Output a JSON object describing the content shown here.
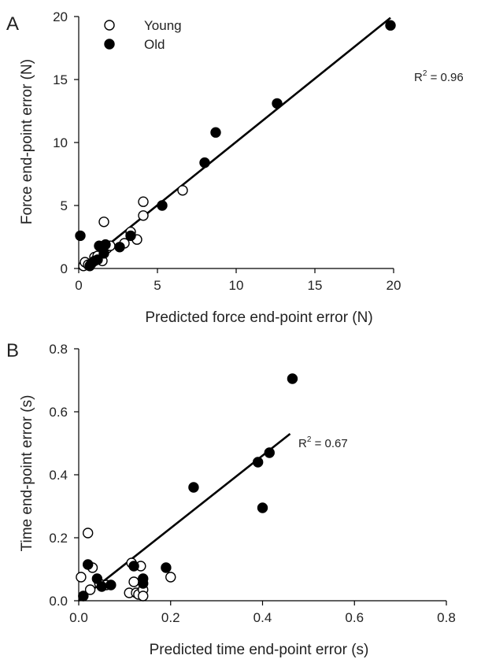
{
  "chart_data": [
    {
      "panel_label": "A",
      "type": "scatter",
      "xlabel": "Predicted force end-point error (N)",
      "ylabel": "Force end-point error (N)",
      "xlim": [
        0,
        20
      ],
      "ylim": [
        0,
        20
      ],
      "xticks": [
        "0",
        "5",
        "10",
        "15",
        "20"
      ],
      "yticks": [
        "0",
        "5",
        "10",
        "15",
        "20"
      ],
      "legend": {
        "position": "top-left",
        "entries": [
          {
            "label": "Young",
            "marker": "open-circle"
          },
          {
            "label": "Old",
            "marker": "filled-circle"
          }
        ]
      },
      "annotation": {
        "r2_prefix": "R",
        "r2_exp": "2",
        "r2_value": " = 0.96"
      },
      "fit_line": {
        "x": [
          0,
          19.8
        ],
        "y": [
          0,
          19.9
        ]
      },
      "series": [
        {
          "name": "Young",
          "marker": "open-circle",
          "points": [
            [
              0.3,
              0.2
            ],
            [
              0.4,
              0.5
            ],
            [
              0.6,
              0.3
            ],
            [
              0.8,
              0.4
            ],
            [
              1.0,
              0.9
            ],
            [
              1.2,
              1.0
            ],
            [
              1.5,
              0.6
            ],
            [
              1.6,
              3.7
            ],
            [
              1.8,
              1.6
            ],
            [
              2.0,
              1.8
            ],
            [
              2.9,
              2.0
            ],
            [
              3.3,
              2.9
            ],
            [
              3.7,
              2.3
            ],
            [
              4.1,
              5.3
            ],
            [
              4.1,
              4.2
            ],
            [
              6.6,
              6.2
            ]
          ]
        },
        {
          "name": "Old",
          "marker": "filled-circle",
          "points": [
            [
              0.1,
              2.6
            ],
            [
              0.7,
              0.2
            ],
            [
              0.8,
              0.4
            ],
            [
              1.0,
              0.6
            ],
            [
              1.2,
              0.7
            ],
            [
              1.3,
              1.8
            ],
            [
              1.6,
              1.2
            ],
            [
              1.7,
              1.9
            ],
            [
              2.6,
              1.7
            ],
            [
              3.3,
              2.6
            ],
            [
              5.3,
              5.0
            ],
            [
              8.0,
              8.4
            ],
            [
              8.7,
              10.8
            ],
            [
              12.6,
              13.1
            ],
            [
              19.8,
              19.3
            ]
          ]
        }
      ]
    },
    {
      "panel_label": "B",
      "type": "scatter",
      "xlabel": "Predicted time end-point error (s)",
      "ylabel": "Time end-point error (s)",
      "xlim": [
        0,
        0.8
      ],
      "ylim": [
        0,
        0.8
      ],
      "xticks": [
        "0.0",
        "0.2",
        "0.4",
        "0.6",
        "0.8"
      ],
      "yticks": [
        "0.0",
        "0.2",
        "0.4",
        "0.6",
        "0.8"
      ],
      "annotation": {
        "r2_prefix": "R",
        "r2_exp": "2",
        "r2_value": " = 0.67"
      },
      "fit_line": {
        "x": [
          0,
          0.46
        ],
        "y": [
          0,
          0.53
        ]
      },
      "series": [
        {
          "name": "Young",
          "marker": "open-circle",
          "points": [
            [
              0.005,
              0.075
            ],
            [
              0.02,
              0.215
            ],
            [
              0.025,
              0.035
            ],
            [
              0.03,
              0.105
            ],
            [
              0.045,
              0.055
            ],
            [
              0.06,
              0.05
            ],
            [
              0.11,
              0.025
            ],
            [
              0.115,
              0.12
            ],
            [
              0.12,
              0.06
            ],
            [
              0.125,
              0.025
            ],
            [
              0.13,
              0.02
            ],
            [
              0.135,
              0.11
            ],
            [
              0.14,
              0.035
            ],
            [
              0.14,
              0.015
            ],
            [
              0.2,
              0.075
            ]
          ]
        },
        {
          "name": "Old",
          "marker": "filled-circle",
          "points": [
            [
              0.01,
              0.015
            ],
            [
              0.02,
              0.115
            ],
            [
              0.04,
              0.07
            ],
            [
              0.05,
              0.045
            ],
            [
              0.07,
              0.05
            ],
            [
              0.12,
              0.11
            ],
            [
              0.14,
              0.07
            ],
            [
              0.14,
              0.055
            ],
            [
              0.19,
              0.105
            ],
            [
              0.25,
              0.36
            ],
            [
              0.39,
              0.44
            ],
            [
              0.4,
              0.295
            ],
            [
              0.415,
              0.47
            ],
            [
              0.465,
              0.705
            ]
          ]
        }
      ]
    }
  ]
}
